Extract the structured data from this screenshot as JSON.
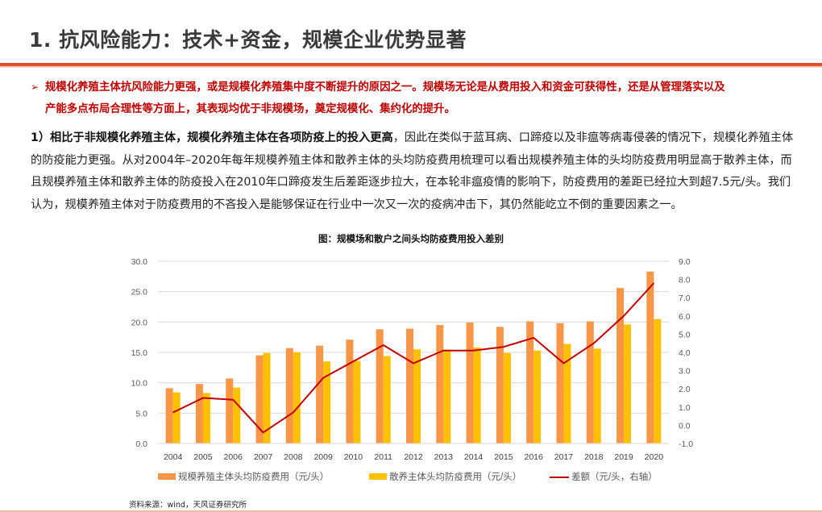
{
  "header": {
    "title": "1. 抗风险能力：技术+资金，规模企业优势显著"
  },
  "bullet": {
    "marker": "➢",
    "line1": "规模化养殖主体抗风险能力更强，或是规模化养殖集中度不断提升的原因之一。规模场无论是从费用投入和资金可获得性，还是从管理落实以及",
    "line2": "产能多点布局合理性等方面上，其表现均优于非规模场，奠定规模化、集约化的提升。"
  },
  "paragraph": {
    "bold_lead": "1）相比于非规模化养殖主体，规模化养殖主体在各项防疫上的投入更高",
    "rest": "，因此在类似于蓝耳病、口蹄疫以及非瘟等病毒侵袭的情况下，规模化养殖主体的防疫能力更强。从对2004年–2020年每年规模养殖主体和散养主体的头均防疫费用梳理可以看出规模养殖主体的头均防疫费用明显高于散养主体，而且规模养殖主体和散养主体的防疫投入在2010年口蹄疫发生后差距逐步拉大，在本轮非瘟疫情的影响下，防疫费用的差距已经拉大到超7.5元/头。我们认为，规模养殖主体对于防疫费用的不吝投入是能够保证在行业中一次又一次的疫病冲击下，其仍然能屹立不倒的重要因素之一。"
  },
  "source": "资料来源：wind，天风证券研究所",
  "colors": {
    "accent_rule": "#e0502a",
    "bullet_text": "#c00000",
    "series_large": "#f79646",
    "series_small": "#ffc000",
    "series_diff": "#c00000"
  },
  "chart_data": {
    "type": "bar",
    "title": "图：规模场和散户之间头均防疫费用投入差别",
    "categories": [
      "2004",
      "2005",
      "2006",
      "2007",
      "2008",
      "2009",
      "2010",
      "2011",
      "2012",
      "2013",
      "2014",
      "2015",
      "2016",
      "2017",
      "2018",
      "2019",
      "2020"
    ],
    "series": [
      {
        "name": "规模养殖主体头均防疫费用（元/头）",
        "type": "bar",
        "axis": "left",
        "color": "#f79646",
        "values": [
          9.1,
          9.8,
          10.7,
          14.5,
          15.7,
          16.1,
          17.1,
          18.8,
          18.9,
          19.5,
          19.9,
          19.2,
          20.1,
          19.8,
          20.1,
          25.6,
          28.3
        ]
      },
      {
        "name": "散养主体头均防疫费用（元/头）",
        "type": "bar",
        "axis": "left",
        "color": "#ffc000",
        "values": [
          8.4,
          8.3,
          9.2,
          14.9,
          15.0,
          13.5,
          13.6,
          14.4,
          15.5,
          15.4,
          15.8,
          14.9,
          15.3,
          16.4,
          15.6,
          19.6,
          20.5
        ]
      },
      {
        "name": "差额（元/头，右轴）",
        "type": "line",
        "axis": "right",
        "color": "#c00000",
        "values": [
          0.7,
          1.5,
          1.4,
          -0.4,
          0.7,
          2.6,
          3.5,
          4.4,
          3.4,
          4.1,
          4.1,
          4.3,
          4.8,
          3.4,
          4.5,
          6.0,
          7.8
        ]
      }
    ],
    "left_axis": {
      "ylim": [
        0,
        30
      ],
      "ticks": [
        "0.0",
        "5.0",
        "10.0",
        "15.0",
        "20.0",
        "25.0",
        "30.0"
      ]
    },
    "right_axis": {
      "ylim": [
        -1,
        9
      ],
      "ticks": [
        "-1.0",
        "0.0",
        "1.0",
        "2.0",
        "3.0",
        "4.0",
        "5.0",
        "6.0",
        "7.0",
        "8.0",
        "9.0"
      ]
    },
    "xlabel": "",
    "ylabel": "",
    "grid": true,
    "legend_position": "bottom"
  }
}
